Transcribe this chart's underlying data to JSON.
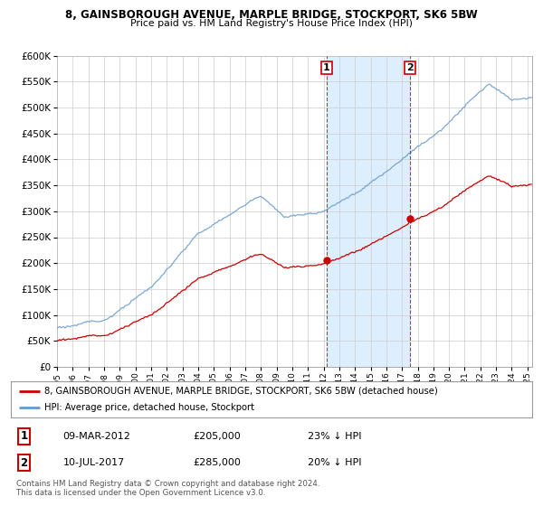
{
  "title": "8, GAINSBOROUGH AVENUE, MARPLE BRIDGE, STOCKPORT, SK6 5BW",
  "subtitle": "Price paid vs. HM Land Registry's House Price Index (HPI)",
  "legend_line1": "8, GAINSBOROUGH AVENUE, MARPLE BRIDGE, STOCKPORT, SK6 5BW (detached house)",
  "legend_line2": "HPI: Average price, detached house, Stockport",
  "sale1_date": "09-MAR-2012",
  "sale1_price": "£205,000",
  "sale1_hpi": "23% ↓ HPI",
  "sale1_year": 2012.19,
  "sale1_value": 205000,
  "sale2_date": "10-JUL-2017",
  "sale2_price": "£285,000",
  "sale2_hpi": "20% ↓ HPI",
  "sale2_year": 2017.52,
  "sale2_value": 285000,
  "ylim": [
    0,
    600000
  ],
  "yticks": [
    0,
    50000,
    100000,
    150000,
    200000,
    250000,
    300000,
    350000,
    400000,
    450000,
    500000,
    550000,
    600000
  ],
  "xlim_start": 1995,
  "xlim_end": 2025.3,
  "price_line_color": "#cc0000",
  "hpi_line_color": "#6699cc",
  "shade_color": "#ddeeff",
  "background_color": "#ffffff",
  "grid_color": "#cccccc",
  "copyright_text": "Contains HM Land Registry data © Crown copyright and database right 2024.\nThis data is licensed under the Open Government Licence v3.0."
}
